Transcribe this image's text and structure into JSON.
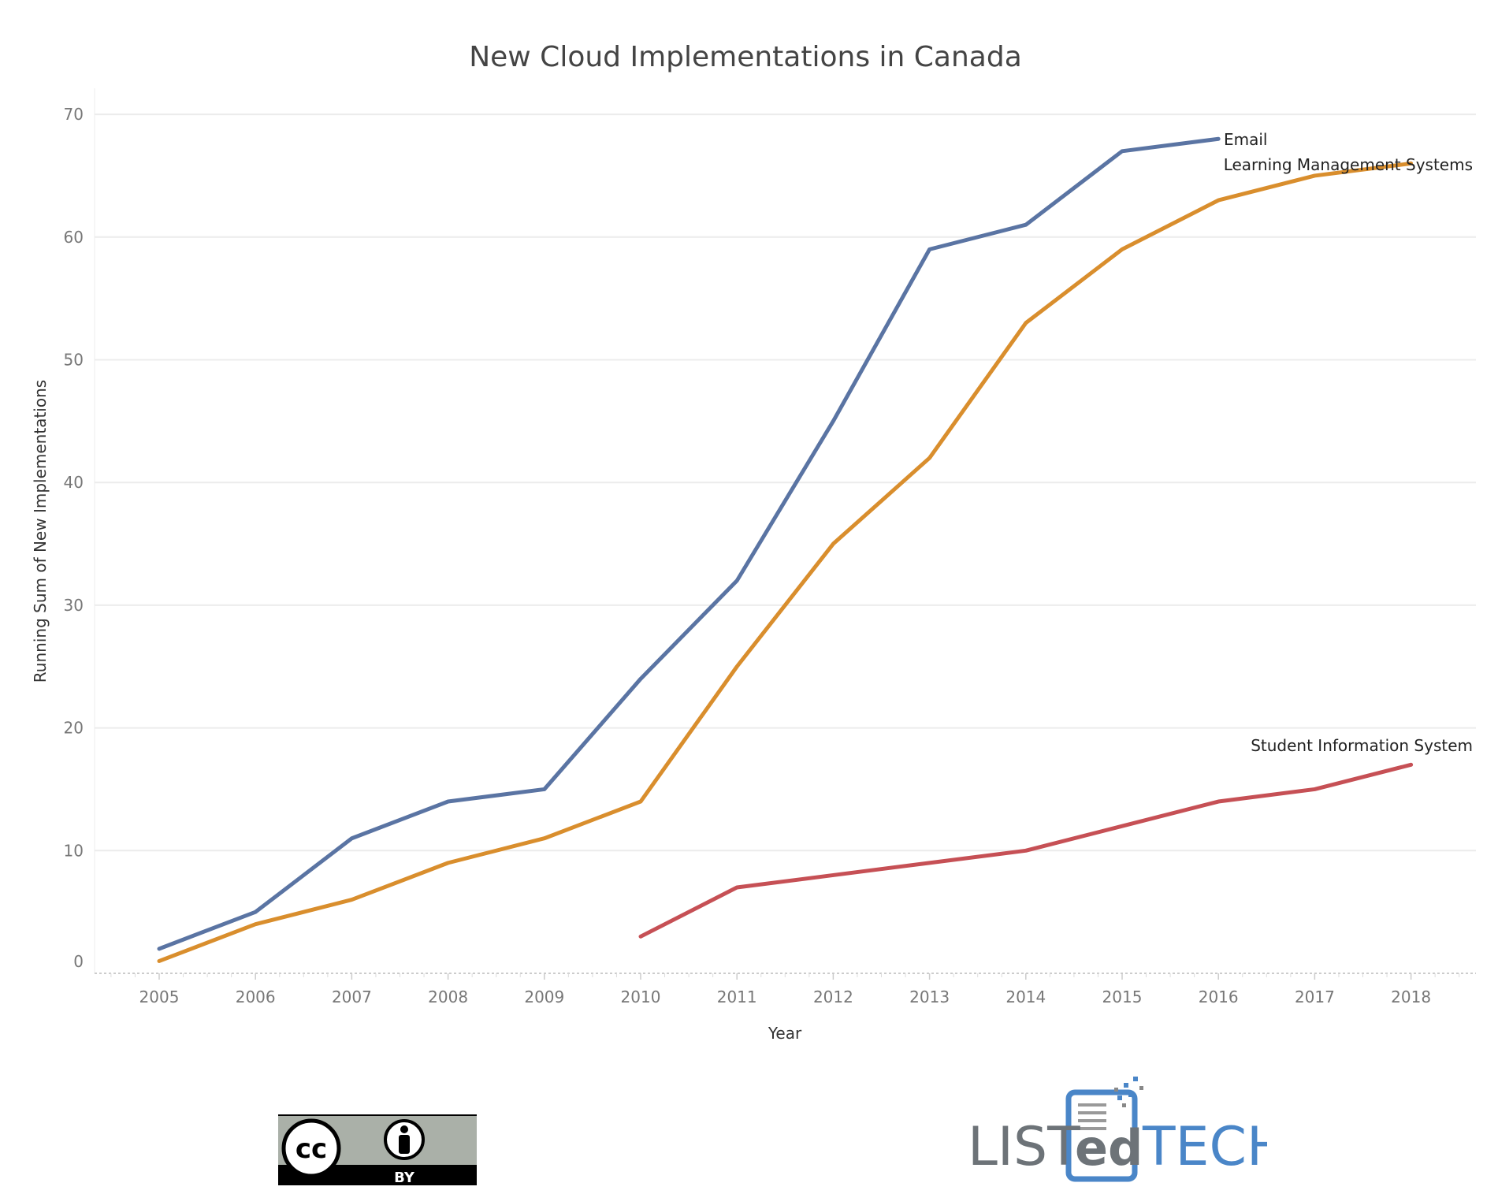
{
  "chart_data": {
    "type": "line",
    "title": "New Cloud Implementations in Canada",
    "xlabel": "Year",
    "ylabel": "Running Sum of New Implementations",
    "x": [
      2005,
      2006,
      2007,
      2008,
      2009,
      2010,
      2011,
      2012,
      2013,
      2014,
      2015,
      2016,
      2017,
      2018
    ],
    "xlim": [
      2004.35,
      2018.7
    ],
    "ylim": [
      -1,
      72
    ],
    "yticks": [
      0,
      10,
      20,
      30,
      40,
      50,
      60,
      70
    ],
    "grid": "horizontal",
    "legend": "inline labels at line ends",
    "series": [
      {
        "name": "Email",
        "color": "#5a74a3",
        "x": [
          2005,
          2006,
          2007,
          2008,
          2009,
          2010,
          2011,
          2012,
          2013,
          2014,
          2015,
          2016
        ],
        "values": [
          2,
          5,
          11,
          14,
          15,
          24,
          32,
          45,
          59,
          61,
          67,
          68
        ]
      },
      {
        "name": "Learning Management Systems",
        "color": "#d98e2d",
        "x": [
          2005,
          2006,
          2007,
          2008,
          2009,
          2010,
          2011,
          2012,
          2013,
          2014,
          2015,
          2016,
          2017,
          2018
        ],
        "values": [
          1,
          4,
          6,
          9,
          11,
          14,
          25,
          35,
          42,
          53,
          59,
          63,
          65,
          66
        ]
      },
      {
        "name": "Student Information System",
        "color": "#c65055",
        "x": [
          2010,
          2011,
          2012,
          2013,
          2014,
          2015,
          2016,
          2017,
          2018
        ],
        "values": [
          3,
          7,
          8,
          9,
          10,
          12,
          14,
          15,
          17
        ]
      }
    ]
  },
  "logos": {
    "license": {
      "text": "cc BY",
      "colors": {
        "bg": "#aab0a8",
        "band": "#000000"
      }
    },
    "brand": {
      "text": "LISTedTECH",
      "colors": {
        "gray": "#6d7378",
        "blue": "#4a86c8"
      }
    }
  }
}
